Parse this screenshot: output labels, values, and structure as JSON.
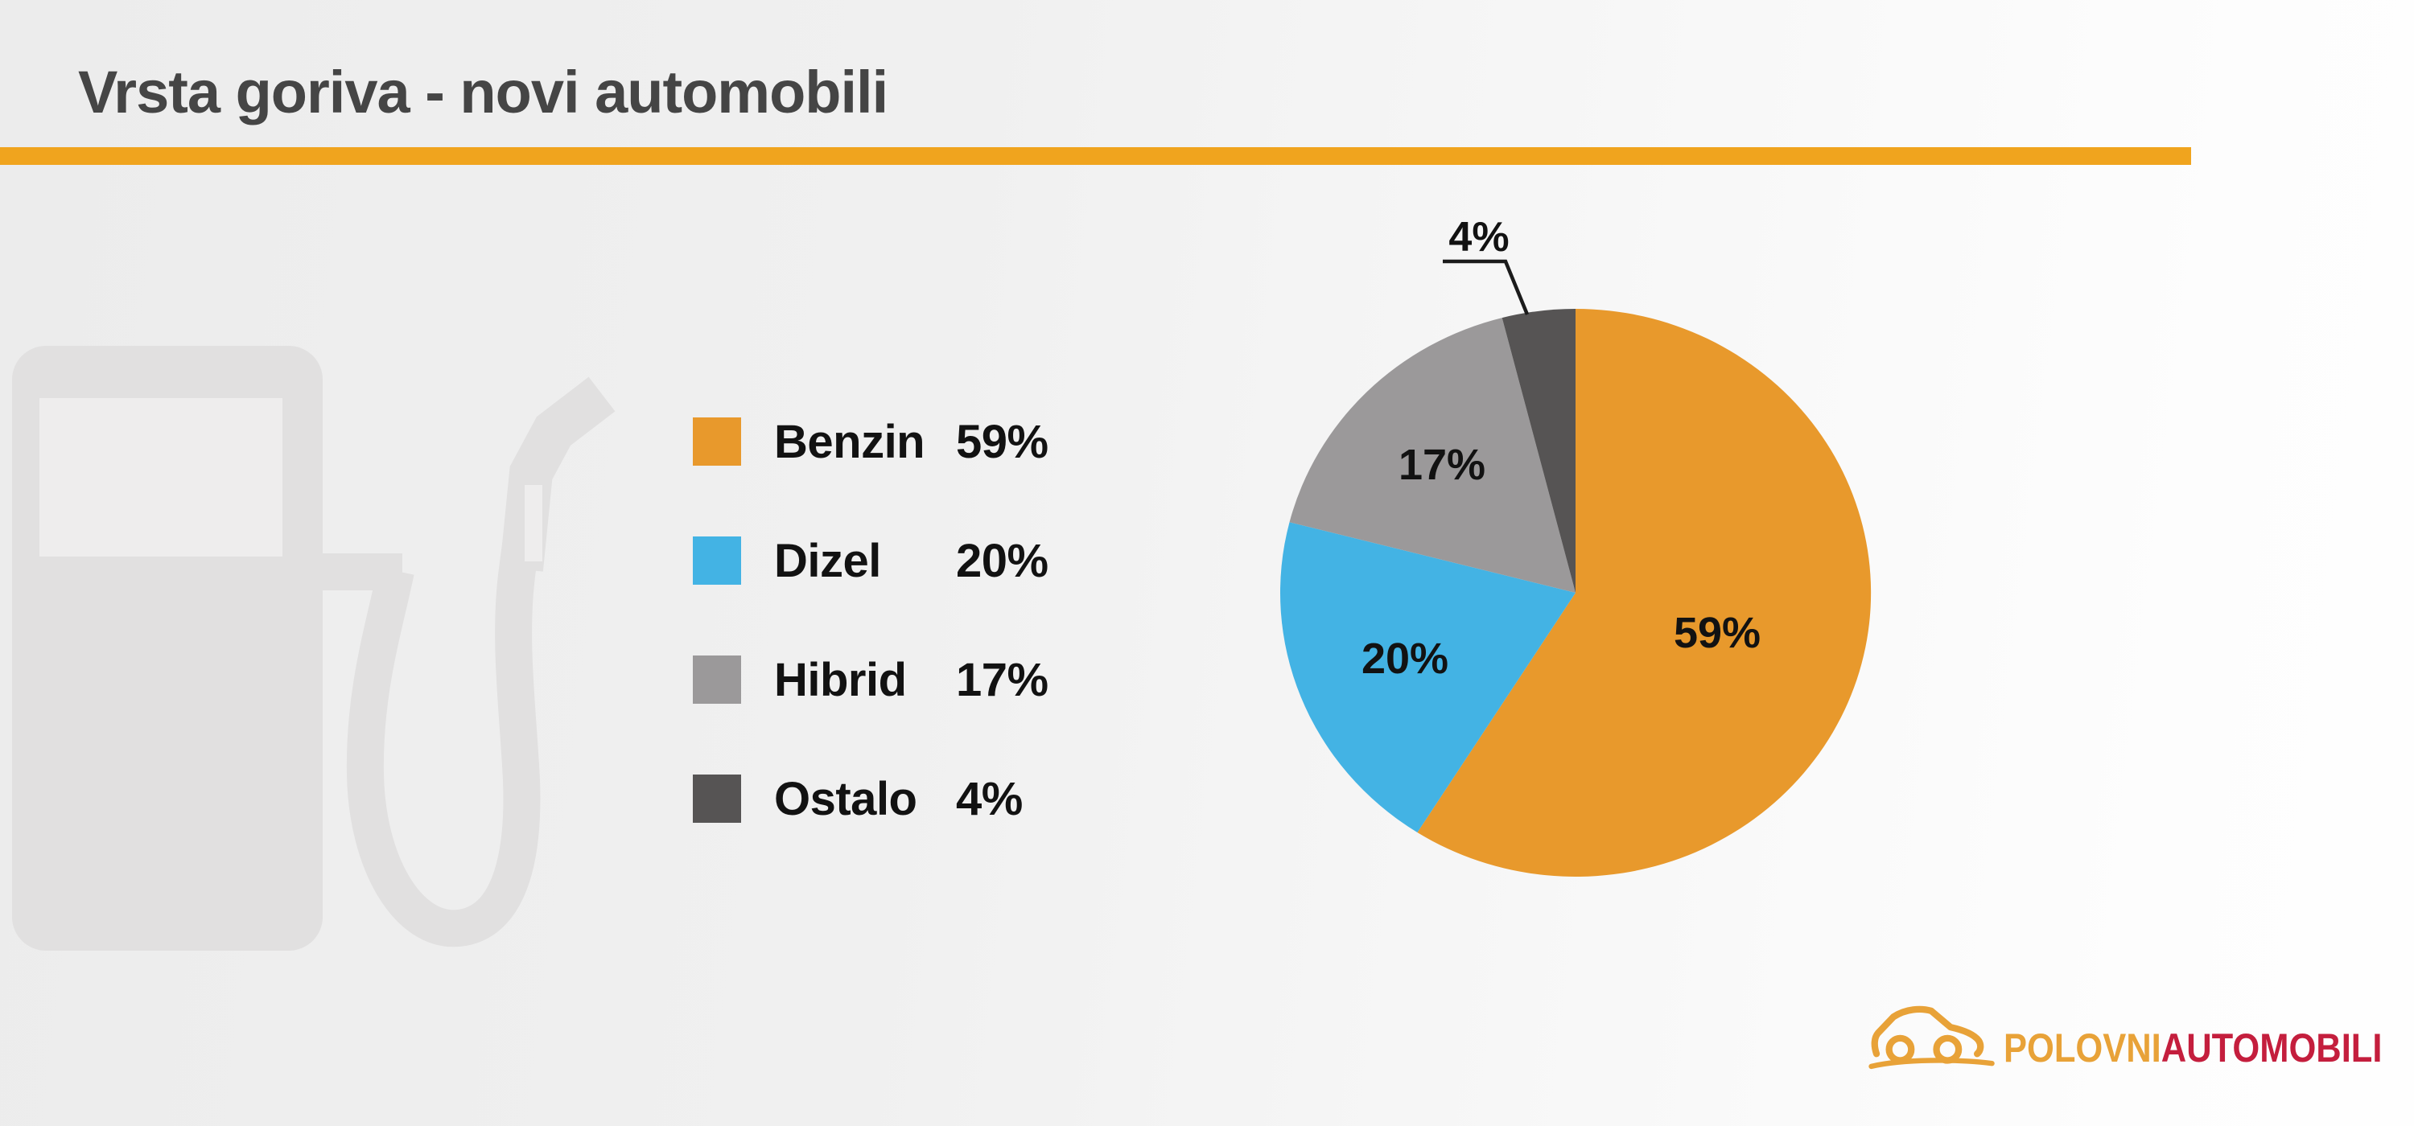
{
  "header": {
    "title": "Vrsta goriva - novi automobili"
  },
  "colors": {
    "accent_bar": "#F0A41E",
    "title_text": "#454545",
    "label_text": "#121212",
    "background_left": "#ECECEC",
    "background_right": "#FEFEFE",
    "watermark_fill": "#E1E0E0",
    "watermark_light": "#EEEDED",
    "benzin": "#E8992C",
    "dizel": "#43B3E4",
    "hibrid": "#9B999A",
    "ostalo": "#565454"
  },
  "legend": {
    "items": [
      {
        "label": "Benzin",
        "value": "59%",
        "color": "#E8992C"
      },
      {
        "label": "Dizel",
        "value": "20%",
        "color": "#43B3E4"
      },
      {
        "label": "Hibrid",
        "value": "17%",
        "color": "#9B999A"
      },
      {
        "label": "Ostalo",
        "value": "4%",
        "color": "#565454"
      }
    ]
  },
  "chart_data": {
    "type": "pie",
    "title": "Vrsta goriva - novi automobili",
    "categories": [
      "Benzin",
      "Dizel",
      "Hibrid",
      "Ostalo"
    ],
    "values": [
      59,
      20,
      17,
      4
    ],
    "labels": [
      "59%",
      "20%",
      "17%",
      "4%"
    ],
    "unit": "%",
    "colors": [
      "#E8992C",
      "#43B3E4",
      "#9B999A",
      "#565454"
    ],
    "start_angle_deg": 0,
    "direction": "clockwise",
    "legend_position": "left",
    "label_style": "inside, smallest slice uses outside callout with leader line"
  },
  "logo": {
    "text_primary": "POLOVNI",
    "text_secondary": "AUTOMOBILI",
    "color_primary": "#E8A238",
    "color_secondary": "#C41E3D",
    "icon": "car-outline-icon"
  },
  "watermark": {
    "icon": "fuel-pump-icon"
  }
}
